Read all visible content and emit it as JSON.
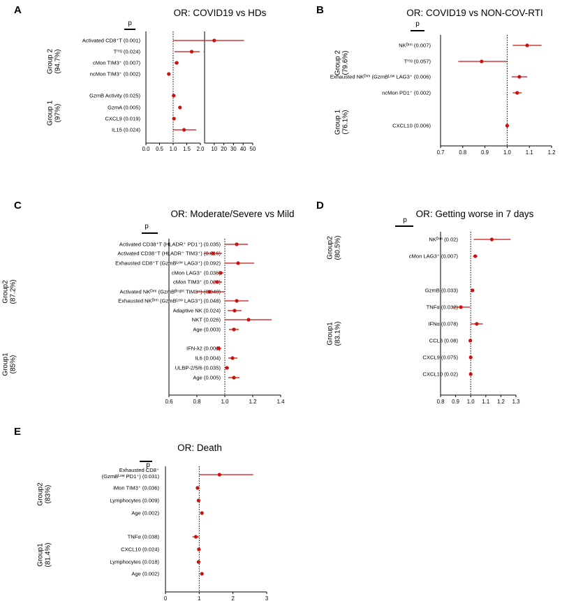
{
  "chart_data": [
    {
      "type": "forest",
      "panel": "A",
      "title": "OR: COVID19 vs HDs",
      "p_header": "p",
      "xticks_left": [
        "0.0",
        "0.5",
        "1.0",
        "1.5",
        "2.0"
      ],
      "xticks_right": [
        "10",
        "20",
        "30",
        "40",
        "50"
      ],
      "xlim_left": [
        0,
        2.0
      ],
      "xlim_right": [
        0,
        50
      ],
      "reference": 1.0,
      "groups": [
        {
          "label_line1": "Group 2",
          "label_line2": "(94.7%)",
          "rows": [
            {
              "label": "Activated CD8⁺T (0.001)",
              "or": 10,
              "lo": 1.0,
              "hi": 41,
              "segment": "right"
            },
            {
              "label": "Tʳᵉᵍ (0.024)",
              "or": 1.68,
              "lo": 1.05,
              "hi": 1.98,
              "segment": "left"
            },
            {
              "label": "cMon TIM3⁺ (0.007)",
              "or": 1.13,
              "lo": 1.05,
              "hi": 1.2,
              "segment": "left"
            },
            {
              "label": "ncMon TIM3⁺ (0.002)",
              "or": 0.84,
              "lo": 0.78,
              "hi": 0.9,
              "segment": "left"
            }
          ]
        },
        {
          "label_line1": "Group 1",
          "label_line2": "(97%)",
          "rows": [
            {
              "label": "GzmB Activity (0.025)",
              "or": 1.02,
              "lo": 1.0,
              "hi": 1.04,
              "segment": "left"
            },
            {
              "label": "GzmA (0.005)",
              "or": 1.25,
              "lo": 1.2,
              "hi": 1.3,
              "segment": "left"
            },
            {
              "label": "CXCL9 (0.019)",
              "or": 1.03,
              "lo": 1.0,
              "hi": 1.06,
              "segment": "left"
            },
            {
              "label": "IL15 (0.024)",
              "or": 1.4,
              "lo": 1.0,
              "hi": 1.85,
              "segment": "left"
            }
          ]
        }
      ]
    },
    {
      "type": "forest",
      "panel": "B",
      "title": "OR: COVID19 vs NON-COV-RTI",
      "p_header": "p",
      "xticks": [
        "0.7",
        "0.8",
        "0.9",
        "1.0",
        "1.1",
        "1.2"
      ],
      "xlim": [
        0.7,
        1.2
      ],
      "reference": 1.0,
      "groups": [
        {
          "label_line1": "Group 2",
          "label_line2": "(79.6%)",
          "rows": [
            {
              "label": "NKᴰⁱᵐ (0.007)",
              "or": 1.09,
              "lo": 1.025,
              "hi": 1.155
            },
            {
              "label": "Tʳᵉᵍ (0.057)",
              "or": 0.885,
              "lo": 0.78,
              "hi": 1.0
            },
            {
              "label": "Exhausted NKᴰⁱᵐ (GzmBᴸᵒʷ LAG3⁺ (0.006)",
              "or": 1.055,
              "lo": 1.02,
              "hi": 1.09
            },
            {
              "label": "ncMon PD1⁺ (0.002)",
              "or": 1.045,
              "lo": 1.025,
              "hi": 1.065
            }
          ]
        },
        {
          "label_line1": "Group 1",
          "label_line2": "(76.1%)",
          "rows": [
            {
              "label": "CXCL10 (0.006)",
              "or": 1.0,
              "lo": 0.998,
              "hi": 1.002
            }
          ]
        }
      ]
    },
    {
      "type": "forest",
      "panel": "C",
      "title": "OR: Moderate/Severe vs Mild",
      "p_header": "p",
      "xticks": [
        "0.6",
        "0.8",
        "1.0",
        "1.2",
        "1.4"
      ],
      "xlim": [
        0.6,
        1.4
      ],
      "reference": 1.0,
      "groups": [
        {
          "label_line1": "Group2",
          "label_line2": "(87.2%)",
          "rows": [
            {
              "label": "Activated CD38⁺T (HLADR⁺ PD1⁺) (0.035)",
              "or": 1.085,
              "lo": 1.0,
              "hi": 1.165
            },
            {
              "label": "Activated CD38⁺T (HLADR⁺ TIM3⁺) (0.016)",
              "or": 0.915,
              "lo": 0.85,
              "hi": 0.98
            },
            {
              "label": "Exhausted CD8⁺T (GzmBᴸᵒʷ LAG3⁺) (0.092)",
              "or": 1.095,
              "lo": 1.0,
              "hi": 1.21
            },
            {
              "label": "cMon LAG3⁺ (0.036)",
              "or": 0.97,
              "lo": 0.95,
              "hi": 0.99
            },
            {
              "label": "cMon TIM3⁺ (0.026)",
              "or": 0.945,
              "lo": 0.91,
              "hi": 0.98
            },
            {
              "label": "Activated NKᴰⁱᵐ (GzmBᴮʳⁱᵍʰᵗ TIM3⁺) (0.040)",
              "or": 0.89,
              "lo": 0.79,
              "hi": 1.0
            },
            {
              "label": "Exhausted NKᴰⁱᵐ (GzmBᴸᵒʷ LAG3⁺) (0.048)",
              "or": 1.085,
              "lo": 1.0,
              "hi": 1.17
            },
            {
              "label": "Adaptive NK (0.024)",
              "or": 1.07,
              "lo": 1.02,
              "hi": 1.12
            },
            {
              "label": "NKT (0.026)",
              "or": 1.17,
              "lo": 1.0,
              "hi": 1.335
            },
            {
              "label": "Age (0.003)",
              "or": 1.065,
              "lo": 1.03,
              "hi": 1.1
            }
          ]
        },
        {
          "label_line1": "Group1",
          "label_line2": "(85%)",
          "rows": [
            {
              "label": "IFN-λ2 (0.002)",
              "or": 0.955,
              "lo": 0.935,
              "hi": 0.975
            },
            {
              "label": "IL6 (0.004)",
              "or": 1.055,
              "lo": 1.025,
              "hi": 1.09
            },
            {
              "label": "ULBP-2/5/6 (0.035)",
              "or": 1.015,
              "lo": 1.0,
              "hi": 1.03
            },
            {
              "label": "Age (0.005)",
              "or": 1.065,
              "lo": 1.025,
              "hi": 1.105
            }
          ]
        }
      ]
    },
    {
      "type": "forest",
      "panel": "D",
      "title": "OR: Getting worse in 7 days",
      "p_header": "p",
      "xticks": [
        "0.8",
        "0.9",
        "1.0",
        "1.1",
        "1.2",
        "1.3"
      ],
      "xlim": [
        0.8,
        1.3
      ],
      "reference": 1.0,
      "groups": [
        {
          "label_line1": "Group2",
          "label_line2": "(80.5%)",
          "rows": [
            {
              "label": "NKᴰⁱᵐ (0.02)",
              "or": 1.14,
              "lo": 1.02,
              "hi": 1.265
            },
            {
              "label": "cMon LAG3⁺ (0.007)",
              "or": 1.03,
              "lo": 1.015,
              "hi": 1.045
            }
          ]
        },
        {
          "label_line1": "Group1",
          "label_line2": "(83.1%)",
          "rows": [
            {
              "label": "GzmB (0.033)",
              "or": 1.012,
              "lo": 1.003,
              "hi": 1.022
            },
            {
              "label": "TNFα  (0.032)",
              "or": 0.935,
              "lo": 0.88,
              "hi": 0.995
            },
            {
              "label": "IFNα  (0.078)",
              "or": 1.04,
              "lo": 1.0,
              "hi": 1.08
            },
            {
              "label": "CCL8 (0.08)",
              "or": 0.997,
              "lo": 0.994,
              "hi": 1.0
            },
            {
              "label": "CXCL9 (0.075)",
              "or": 1.0,
              "lo": 0.997,
              "hi": 1.003
            },
            {
              "label": "CXCL10 (0.02)",
              "or": 1.0,
              "lo": 0.997,
              "hi": 1.003
            }
          ]
        }
      ]
    },
    {
      "type": "forest",
      "panel": "E",
      "title": "OR: Death",
      "p_header": "p",
      "xticks": [
        "0",
        "1",
        "2",
        "3"
      ],
      "xlim": [
        0,
        3
      ],
      "reference": 1.0,
      "groups": [
        {
          "label_line1": "Group2",
          "label_line2": "(83%)",
          "rows": [
            {
              "label_lines": [
                "Exhausted CD8⁺",
                "(GzmBᴸᵒʷ PD1⁺) (0.031)"
              ],
              "or": 1.6,
              "lo": 1.0,
              "hi": 2.6
            },
            {
              "label": "iMon TIM3⁺ (0.036)",
              "or": 0.95,
              "lo": 0.9,
              "hi": 1.0
            },
            {
              "label": "Lymphocytes (0.009)",
              "or": 0.98,
              "lo": 0.95,
              "hi": 1.01
            },
            {
              "label": "Age (0.002)",
              "or": 1.08,
              "lo": 1.03,
              "hi": 1.13
            }
          ]
        },
        {
          "label_line1": "Group1",
          "label_line2": "(81.4%)",
          "rows": [
            {
              "label": "TNFα (0.038)",
              "or": 0.9,
              "lo": 0.8,
              "hi": 0.99
            },
            {
              "label": "CXCL10 (0.024)",
              "or": 0.99,
              "lo": 0.97,
              "hi": 1.01
            },
            {
              "label": "Lymphocytes (0.018)",
              "or": 0.98,
              "lo": 0.95,
              "hi": 1.01
            },
            {
              "label": "Age (0.002)",
              "or": 1.08,
              "lo": 1.03,
              "hi": 1.13
            }
          ]
        }
      ]
    }
  ]
}
